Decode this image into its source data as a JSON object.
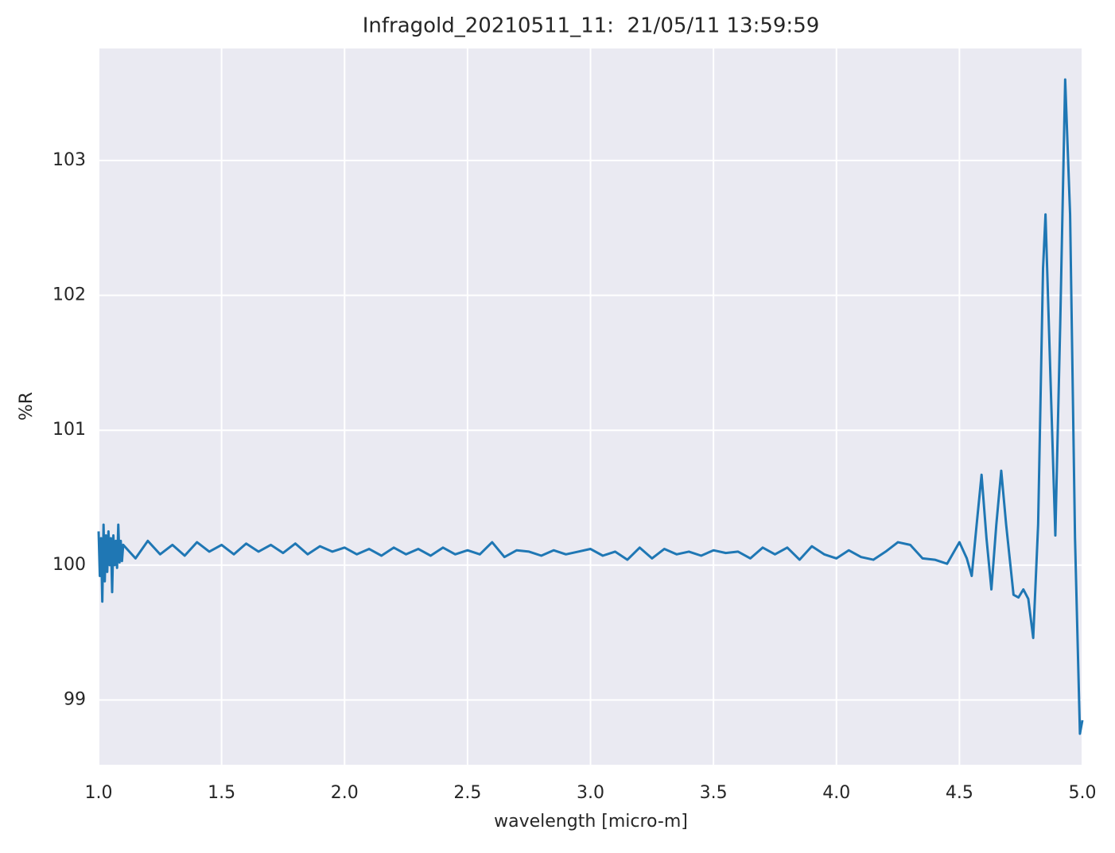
{
  "chart_data": {
    "type": "line",
    "title": "Infragold_20210511_11:  21/05/11 13:59:59",
    "xlabel": "wavelength [micro-m]",
    "ylabel": "%R",
    "x": [
      1.0,
      1.005,
      1.01,
      1.015,
      1.02,
      1.025,
      1.03,
      1.035,
      1.04,
      1.045,
      1.05,
      1.055,
      1.06,
      1.065,
      1.07,
      1.075,
      1.08,
      1.085,
      1.09,
      1.095,
      1.1,
      1.15,
      1.2,
      1.25,
      1.3,
      1.35,
      1.4,
      1.45,
      1.5,
      1.55,
      1.6,
      1.65,
      1.7,
      1.75,
      1.8,
      1.85,
      1.9,
      1.95,
      2.0,
      2.05,
      2.1,
      2.15,
      2.2,
      2.25,
      2.3,
      2.35,
      2.4,
      2.45,
      2.5,
      2.55,
      2.6,
      2.65,
      2.7,
      2.75,
      2.8,
      2.85,
      2.9,
      2.95,
      3.0,
      3.05,
      3.1,
      3.15,
      3.2,
      3.25,
      3.3,
      3.35,
      3.4,
      3.45,
      3.5,
      3.55,
      3.6,
      3.65,
      3.7,
      3.75,
      3.8,
      3.85,
      3.9,
      3.95,
      4.0,
      4.05,
      4.1,
      4.15,
      4.2,
      4.25,
      4.3,
      4.35,
      4.4,
      4.45,
      4.5,
      4.53,
      4.55,
      4.57,
      4.59,
      4.61,
      4.63,
      4.65,
      4.67,
      4.69,
      4.72,
      4.74,
      4.76,
      4.78,
      4.8,
      4.82,
      4.84,
      4.85,
      4.87,
      4.89,
      4.91,
      4.93,
      4.95,
      4.97,
      4.99,
      5.0
    ],
    "series": [
      {
        "color": "#1f77b4",
        "values": [
          100.25,
          99.92,
          100.2,
          99.73,
          100.3,
          99.88,
          100.22,
          99.95,
          100.25,
          100.0,
          100.2,
          99.8,
          100.22,
          100.0,
          100.18,
          99.98,
          100.3,
          100.02,
          100.18,
          100.03,
          100.15,
          100.05,
          100.18,
          100.08,
          100.15,
          100.07,
          100.17,
          100.1,
          100.15,
          100.08,
          100.16,
          100.1,
          100.15,
          100.09,
          100.16,
          100.08,
          100.14,
          100.1,
          100.13,
          100.08,
          100.12,
          100.07,
          100.13,
          100.08,
          100.12,
          100.07,
          100.13,
          100.08,
          100.11,
          100.08,
          100.17,
          100.06,
          100.11,
          100.1,
          100.07,
          100.11,
          100.08,
          100.1,
          100.12,
          100.07,
          100.1,
          100.04,
          100.13,
          100.05,
          100.12,
          100.08,
          100.1,
          100.07,
          100.11,
          100.09,
          100.1,
          100.05,
          100.13,
          100.08,
          100.13,
          100.04,
          100.14,
          100.08,
          100.05,
          100.11,
          100.06,
          100.04,
          100.1,
          100.17,
          100.15,
          100.05,
          100.04,
          100.01,
          100.17,
          100.05,
          99.92,
          100.3,
          100.67,
          100.2,
          99.82,
          100.3,
          100.7,
          100.3,
          99.78,
          99.76,
          99.82,
          99.75,
          99.46,
          100.3,
          102.2,
          102.6,
          101.4,
          100.22,
          101.8,
          103.6,
          102.6,
          100.2,
          98.75,
          98.85
        ]
      }
    ],
    "xlim": [
      1.0,
      5.0
    ],
    "ylim": [
      98.52,
      103.83
    ],
    "xticks": [
      {
        "value": 1.0,
        "label": "1.0"
      },
      1.5,
      {
        "value": 2.0,
        "label": "2.0"
      },
      2.5,
      {
        "value": 3.0,
        "label": "3.0"
      },
      3.5,
      {
        "value": 4.0,
        "label": "4.0"
      },
      4.5,
      {
        "value": 5.0,
        "label": "5.0"
      }
    ],
    "yticks": [
      99,
      100,
      101,
      102,
      103
    ],
    "grid": true
  }
}
